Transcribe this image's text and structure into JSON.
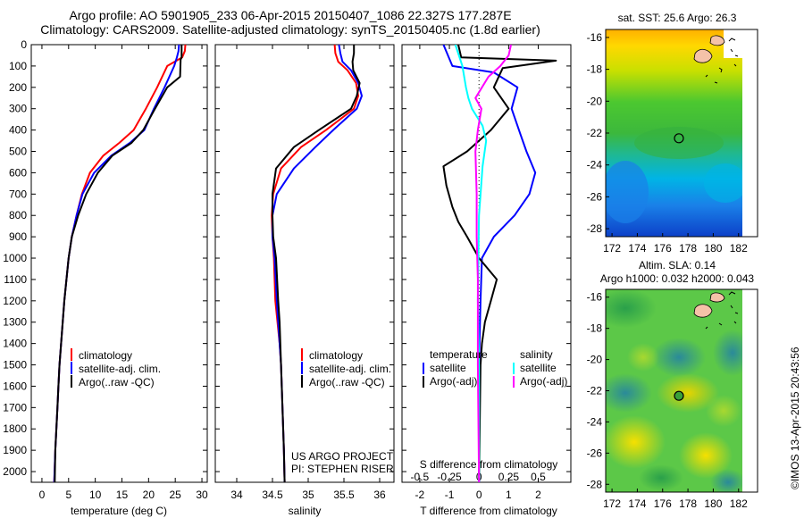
{
  "header": {
    "line1": "Argo profile: AO 5901905_233 06-Apr-2015 20150407_1086 22.327S 177.287E",
    "line2": "Climatology: CARS2009. Satellite-adjusted climatology: synTS_20150405.nc (1.8d earlier)"
  },
  "panels": {
    "temperature": {
      "xlabel": "temperature (deg C)",
      "legend": [
        "climatology",
        "satellite-adj. clim.",
        "Argo(..raw -QC)"
      ]
    },
    "salinity": {
      "xlabel": "salinity",
      "legend": [
        "climatology",
        "satellite-adj. clim.",
        "Argo(..raw -QC)"
      ],
      "credit1": "US ARGO PROJECT",
      "credit2": "PI: STEPHEN RISER"
    },
    "difference": {
      "legend_heading_t": "temperature",
      "legend_heading_s": "salinity",
      "legend_t": [
        "satellite",
        "Argo(-adj)"
      ],
      "legend_s": [
        "satellite",
        "Argo(-adj)"
      ],
      "top_axis_label": "S difference from climatology",
      "xlabel": "T difference from climatology"
    },
    "sst_map": {
      "title": "sat. SST: 25.6  Argo: 26.3"
    },
    "sla_map": {
      "title1": "Altim. SLA: 0.14",
      "title2": "Argo h1000: 0.032 h2000: 0.043"
    }
  },
  "credit_vertical": "©IMOS 13-Apr-2015 20:43:56",
  "colors": {
    "climatology": "#ff0000",
    "satellite_adj": "#0000ff",
    "argo": "#000000",
    "s_satellite": "#00ffff",
    "s_argo": "#ff00ff"
  },
  "chart_data": [
    {
      "type": "line",
      "panel": "temperature",
      "xlabel": "temperature (deg C)",
      "ylabel": "",
      "xlim": [
        -2,
        31
      ],
      "ylim": [
        2050,
        0
      ],
      "xticks": [
        0,
        5,
        10,
        15,
        20,
        25,
        30
      ],
      "yticks": [
        0,
        100,
        200,
        300,
        400,
        500,
        600,
        700,
        800,
        900,
        1000,
        1100,
        1200,
        1300,
        1400,
        1500,
        1600,
        1700,
        1800,
        1900,
        2000
      ],
      "series": [
        {
          "name": "climatology",
          "color": "#ff0000",
          "x": [
            26.9,
            26.8,
            26.3,
            23.5,
            21.6,
            19.5,
            17.2,
            14.5,
            11.5,
            9.0,
            7.5,
            6.5,
            5.6,
            5.0,
            4.6,
            4.2,
            3.9,
            3.6,
            3.3,
            3.1,
            2.9,
            2.7,
            2.5,
            2.3
          ],
          "y": [
            0,
            30,
            60,
            100,
            200,
            300,
            400,
            460,
            520,
            600,
            700,
            800,
            900,
            1000,
            1100,
            1200,
            1300,
            1400,
            1500,
            1600,
            1700,
            1800,
            1900,
            2050
          ]
        },
        {
          "name": "satellite-adj. clim.",
          "color": "#0000ff",
          "x": [
            25.7,
            25.6,
            25.3,
            24.8,
            23.0,
            21.0,
            19.2,
            16.5,
            13.0,
            9.8,
            7.6,
            6.5,
            5.6,
            5.0,
            4.6,
            4.2,
            3.9,
            3.6,
            3.3,
            3.1,
            2.9,
            2.7,
            2.5,
            2.3
          ],
          "y": [
            0,
            30,
            60,
            100,
            200,
            300,
            400,
            460,
            520,
            600,
            700,
            800,
            900,
            1000,
            1100,
            1200,
            1300,
            1400,
            1500,
            1600,
            1700,
            1800,
            1900,
            2050
          ]
        },
        {
          "name": "Argo(..raw -QC)",
          "color": "#000000",
          "x": [
            26.2,
            26.2,
            26.0,
            25.9,
            23.5,
            21.2,
            19.0,
            16.8,
            13.2,
            10.5,
            8.3,
            6.8,
            5.6,
            5.0,
            4.6,
            4.2,
            3.9,
            3.6,
            3.3,
            3.1,
            2.9,
            2.7,
            2.5,
            2.4
          ],
          "y": [
            0,
            60,
            70,
            150,
            200,
            300,
            400,
            460,
            520,
            600,
            700,
            800,
            900,
            1000,
            1100,
            1200,
            1300,
            1400,
            1500,
            1600,
            1700,
            1800,
            1900,
            2050
          ]
        }
      ]
    },
    {
      "type": "line",
      "panel": "salinity",
      "xlabel": "salinity",
      "ylabel": "",
      "xlim": [
        33.7,
        36.2
      ],
      "ylim": [
        2050,
        0
      ],
      "xticks": [
        34,
        34.5,
        35,
        35.5,
        36
      ],
      "series": [
        {
          "name": "climatology",
          "color": "#ff0000",
          "x": [
            35.37,
            35.38,
            35.42,
            35.55,
            35.67,
            35.7,
            35.64,
            35.25,
            34.9,
            34.62,
            34.51,
            34.49,
            34.5,
            34.52,
            34.54,
            34.57,
            34.6,
            34.62,
            34.63,
            34.64,
            34.65,
            34.66,
            34.67
          ],
          "y": [
            0,
            40,
            80,
            120,
            180,
            240,
            300,
            400,
            480,
            580,
            700,
            800,
            900,
            1000,
            1200,
            1300,
            1400,
            1500,
            1600,
            1700,
            1800,
            1900,
            2050
          ]
        },
        {
          "name": "satellite-adj. clim.",
          "color": "#0000ff",
          "x": [
            35.43,
            35.45,
            35.48,
            35.6,
            35.7,
            35.75,
            35.68,
            35.35,
            35.1,
            34.8,
            34.56,
            34.5,
            34.5,
            34.53,
            34.56,
            34.58,
            34.6,
            34.62,
            34.63,
            34.64,
            34.65,
            34.66,
            34.67
          ],
          "y": [
            0,
            40,
            80,
            120,
            180,
            240,
            300,
            400,
            480,
            580,
            700,
            800,
            900,
            1000,
            1200,
            1300,
            1400,
            1500,
            1600,
            1700,
            1800,
            1900,
            2050
          ]
        },
        {
          "name": "Argo(..raw -QC)",
          "color": "#000000",
          "x": [
            35.64,
            35.64,
            35.62,
            35.63,
            35.72,
            35.68,
            35.6,
            35.15,
            34.8,
            34.55,
            34.5,
            34.5,
            34.51,
            34.55,
            34.58,
            34.6,
            34.61,
            34.62,
            34.63,
            34.64,
            34.65,
            34.66,
            34.67
          ],
          "y": [
            0,
            40,
            80,
            120,
            180,
            240,
            300,
            400,
            480,
            580,
            700,
            800,
            900,
            1000,
            1200,
            1300,
            1400,
            1500,
            1600,
            1700,
            1800,
            1900,
            2050
          ]
        }
      ]
    },
    {
      "type": "line",
      "panel": "difference",
      "xlabel": "T difference from climatology",
      "x2label": "S difference from climatology",
      "xlim": [
        -2.6,
        3.1
      ],
      "x2lim": [
        -0.65,
        0.775
      ],
      "ylim": [
        2050,
        0
      ],
      "xticks": [
        -2,
        -1,
        0,
        1,
        2
      ],
      "x2ticks": [
        -0.5,
        -0.25,
        0,
        0.25,
        0.5
      ],
      "x2ticklabels": [
        "-0.5",
        "-0.25",
        "0",
        "0.25",
        "0.5"
      ],
      "series": [
        {
          "name": "temperature satellite",
          "color": "#0000ff",
          "x": [
            -1.2,
            -0.9,
            0.5,
            1.3,
            1.1,
            1.4,
            1.6,
            1.9,
            1.7,
            1.2,
            0.5,
            0.1,
            0.05,
            0.0,
            0.0,
            0.0,
            0.0
          ],
          "y": [
            0,
            100,
            130,
            200,
            300,
            420,
            500,
            600,
            700,
            800,
            900,
            1000,
            1200,
            1500,
            1700,
            1900,
            2050
          ]
        },
        {
          "name": "temperature Argo(-adj)",
          "color": "#000000",
          "x": [
            -0.7,
            -0.6,
            2.6,
            0.8,
            0.5,
            1.0,
            0.4,
            -0.4,
            -1.2,
            -1.1,
            -0.9,
            -0.7,
            -0.4,
            0.0,
            0.6,
            0.4,
            0.2,
            0.1,
            0.05,
            0.0
          ],
          "y": [
            0,
            60,
            75,
            110,
            200,
            300,
            400,
            500,
            570,
            660,
            760,
            830,
            900,
            1000,
            1100,
            1200,
            1300,
            1400,
            1500,
            2050
          ]
        },
        {
          "name": "salinity satellite",
          "color": "#00ffff",
          "x": [
            -0.2,
            -0.17,
            -0.14,
            -0.11,
            -0.09,
            -0.06,
            0.03,
            0.06,
            0.03,
            0.0,
            -0.01,
            0.0,
            0.0
          ],
          "y": [
            0,
            50,
            100,
            200,
            250,
            300,
            380,
            450,
            570,
            800,
            1200,
            1500,
            2050
          ]
        },
        {
          "name": "salinity Argo(-adj)",
          "color": "#ff00ff",
          "x": [
            0.27,
            0.25,
            0.18,
            0.08,
            -0.03,
            0.02,
            -0.01,
            -0.03,
            -0.02,
            -0.02,
            -0.01,
            -0.01,
            0.0
          ],
          "y": [
            0,
            50,
            100,
            150,
            250,
            300,
            400,
            500,
            700,
            900,
            1100,
            1500,
            2050
          ]
        }
      ]
    },
    {
      "type": "heatmap",
      "panel": "sst_map",
      "title": "sat. SST: 25.6  Argo: 26.3",
      "xticks": [
        172,
        174,
        176,
        178,
        180,
        182
      ],
      "yticks": [
        -16,
        -18,
        -20,
        -22,
        -24,
        -26,
        -28
      ],
      "xlim": [
        171.5,
        183.5
      ],
      "ylim": [
        -28.5,
        -15.5
      ],
      "data_extent_x": [
        171.5,
        180
      ],
      "float_position": [
        177.287,
        -22.327
      ]
    },
    {
      "type": "heatmap",
      "panel": "sla_map",
      "title": "Altim. SLA: 0.14  Argo h1000: 0.032 h2000: 0.043",
      "xticks": [
        172,
        174,
        176,
        178,
        180,
        182
      ],
      "yticks": [
        -16,
        -18,
        -20,
        -22,
        -24,
        -26,
        -28
      ],
      "xlim": [
        171.5,
        183.5
      ],
      "ylim": [
        -28.5,
        -15.5
      ],
      "data_extent_x": [
        171.5,
        180
      ],
      "float_position": [
        177.287,
        -22.327
      ]
    }
  ]
}
